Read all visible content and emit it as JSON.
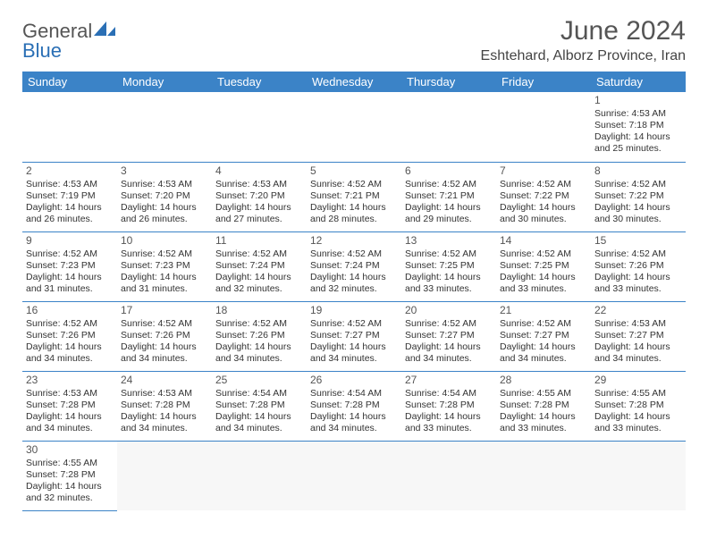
{
  "brand": {
    "part1": "General",
    "part2": "Blue"
  },
  "title": "June 2024",
  "location": "Eshtehard, Alborz Province, Iran",
  "colors": {
    "header_bg": "#3b83c7",
    "header_fg": "#ffffff",
    "border": "#3b83c7",
    "text": "#333333",
    "title_color": "#555555",
    "brand_gray": "#555555",
    "brand_blue": "#2a6fb5"
  },
  "typography": {
    "title_fontsize": 30,
    "location_fontsize": 16,
    "dayheader_fontsize": 13,
    "cell_fontsize": 10.5,
    "daynum_fontsize": 12
  },
  "day_headers": [
    "Sunday",
    "Monday",
    "Tuesday",
    "Wednesday",
    "Thursday",
    "Friday",
    "Saturday"
  ],
  "weeks": [
    [
      null,
      null,
      null,
      null,
      null,
      null,
      {
        "n": "1",
        "sr": "4:53 AM",
        "ss": "7:18 PM",
        "dl": "14 hours and 25 minutes."
      }
    ],
    [
      {
        "n": "2",
        "sr": "4:53 AM",
        "ss": "7:19 PM",
        "dl": "14 hours and 26 minutes."
      },
      {
        "n": "3",
        "sr": "4:53 AM",
        "ss": "7:20 PM",
        "dl": "14 hours and 26 minutes."
      },
      {
        "n": "4",
        "sr": "4:53 AM",
        "ss": "7:20 PM",
        "dl": "14 hours and 27 minutes."
      },
      {
        "n": "5",
        "sr": "4:52 AM",
        "ss": "7:21 PM",
        "dl": "14 hours and 28 minutes."
      },
      {
        "n": "6",
        "sr": "4:52 AM",
        "ss": "7:21 PM",
        "dl": "14 hours and 29 minutes."
      },
      {
        "n": "7",
        "sr": "4:52 AM",
        "ss": "7:22 PM",
        "dl": "14 hours and 30 minutes."
      },
      {
        "n": "8",
        "sr": "4:52 AM",
        "ss": "7:22 PM",
        "dl": "14 hours and 30 minutes."
      }
    ],
    [
      {
        "n": "9",
        "sr": "4:52 AM",
        "ss": "7:23 PM",
        "dl": "14 hours and 31 minutes."
      },
      {
        "n": "10",
        "sr": "4:52 AM",
        "ss": "7:23 PM",
        "dl": "14 hours and 31 minutes."
      },
      {
        "n": "11",
        "sr": "4:52 AM",
        "ss": "7:24 PM",
        "dl": "14 hours and 32 minutes."
      },
      {
        "n": "12",
        "sr": "4:52 AM",
        "ss": "7:24 PM",
        "dl": "14 hours and 32 minutes."
      },
      {
        "n": "13",
        "sr": "4:52 AM",
        "ss": "7:25 PM",
        "dl": "14 hours and 33 minutes."
      },
      {
        "n": "14",
        "sr": "4:52 AM",
        "ss": "7:25 PM",
        "dl": "14 hours and 33 minutes."
      },
      {
        "n": "15",
        "sr": "4:52 AM",
        "ss": "7:26 PM",
        "dl": "14 hours and 33 minutes."
      }
    ],
    [
      {
        "n": "16",
        "sr": "4:52 AM",
        "ss": "7:26 PM",
        "dl": "14 hours and 34 minutes."
      },
      {
        "n": "17",
        "sr": "4:52 AM",
        "ss": "7:26 PM",
        "dl": "14 hours and 34 minutes."
      },
      {
        "n": "18",
        "sr": "4:52 AM",
        "ss": "7:26 PM",
        "dl": "14 hours and 34 minutes."
      },
      {
        "n": "19",
        "sr": "4:52 AM",
        "ss": "7:27 PM",
        "dl": "14 hours and 34 minutes."
      },
      {
        "n": "20",
        "sr": "4:52 AM",
        "ss": "7:27 PM",
        "dl": "14 hours and 34 minutes."
      },
      {
        "n": "21",
        "sr": "4:52 AM",
        "ss": "7:27 PM",
        "dl": "14 hours and 34 minutes."
      },
      {
        "n": "22",
        "sr": "4:53 AM",
        "ss": "7:27 PM",
        "dl": "14 hours and 34 minutes."
      }
    ],
    [
      {
        "n": "23",
        "sr": "4:53 AM",
        "ss": "7:28 PM",
        "dl": "14 hours and 34 minutes."
      },
      {
        "n": "24",
        "sr": "4:53 AM",
        "ss": "7:28 PM",
        "dl": "14 hours and 34 minutes."
      },
      {
        "n": "25",
        "sr": "4:54 AM",
        "ss": "7:28 PM",
        "dl": "14 hours and 34 minutes."
      },
      {
        "n": "26",
        "sr": "4:54 AM",
        "ss": "7:28 PM",
        "dl": "14 hours and 34 minutes."
      },
      {
        "n": "27",
        "sr": "4:54 AM",
        "ss": "7:28 PM",
        "dl": "14 hours and 33 minutes."
      },
      {
        "n": "28",
        "sr": "4:55 AM",
        "ss": "7:28 PM",
        "dl": "14 hours and 33 minutes."
      },
      {
        "n": "29",
        "sr": "4:55 AM",
        "ss": "7:28 PM",
        "dl": "14 hours and 33 minutes."
      }
    ],
    [
      {
        "n": "30",
        "sr": "4:55 AM",
        "ss": "7:28 PM",
        "dl": "14 hours and 32 minutes."
      },
      null,
      null,
      null,
      null,
      null,
      null
    ]
  ],
  "labels": {
    "sunrise": "Sunrise:",
    "sunset": "Sunset:",
    "daylight": "Daylight:"
  }
}
